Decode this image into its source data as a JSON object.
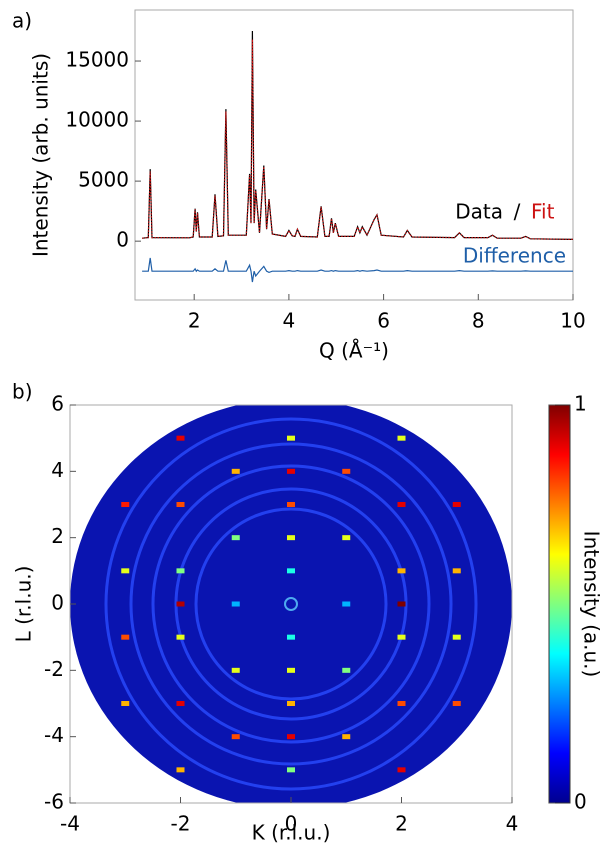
{
  "chart_data": [
    {
      "type": "line",
      "panel_label": "a)",
      "xlabel": "Q (Å⁻¹)",
      "ylabel": "Intensity (arb. units)",
      "xlim": [
        0.75,
        10
      ],
      "ylim": [
        -4900,
        19250
      ],
      "xticks": [
        2,
        4,
        6,
        8,
        10
      ],
      "yticks": [
        0,
        5000,
        10000,
        15000
      ],
      "legend_separator": "/",
      "x": [
        0.9,
        1.03,
        1.07,
        1.11,
        1.9,
        1.98,
        2.02,
        2.045,
        2.07,
        2.11,
        2.38,
        2.44,
        2.5,
        2.62,
        2.67,
        2.72,
        3.1,
        3.17,
        3.2,
        3.23,
        3.265,
        3.3,
        3.38,
        3.47,
        3.53,
        3.58,
        3.65,
        3.93,
        4.0,
        4.07,
        4.13,
        4.18,
        4.25,
        4.6,
        4.68,
        4.76,
        4.85,
        4.9,
        4.94,
        4.98,
        5.05,
        5.38,
        5.45,
        5.5,
        5.55,
        5.65,
        5.8,
        5.86,
        5.95,
        6.42,
        6.5,
        6.6,
        7.5,
        7.6,
        7.7,
        8.2,
        8.3,
        8.4,
        8.9,
        9.0,
        9.1,
        10
      ],
      "series": [
        {
          "name": "Data",
          "color": "#000000",
          "values": [
            250,
            300,
            6000,
            300,
            280,
            350,
            2700,
            800,
            2400,
            350,
            350,
            3900,
            400,
            450,
            11000,
            500,
            500,
            5600,
            1500,
            17500,
            1500,
            4300,
            700,
            6300,
            1000,
            3500,
            600,
            400,
            900,
            450,
            400,
            1000,
            400,
            350,
            2900,
            400,
            400,
            1900,
            700,
            1500,
            400,
            400,
            1200,
            700,
            1200,
            500,
            1800,
            2200,
            500,
            350,
            900,
            350,
            300,
            700,
            300,
            300,
            500,
            250,
            250,
            400,
            200,
            150
          ]
        },
        {
          "name": "Fit",
          "color": "#cc1111",
          "values": [
            250,
            300,
            5800,
            300,
            280,
            350,
            2650,
            800,
            2350,
            350,
            350,
            3800,
            400,
            450,
            10800,
            500,
            500,
            5500,
            1500,
            16800,
            1500,
            4200,
            700,
            6200,
            1000,
            3450,
            600,
            400,
            880,
            450,
            400,
            980,
            400,
            350,
            2850,
            400,
            400,
            1870,
            700,
            1480,
            400,
            400,
            1180,
            700,
            1180,
            500,
            1780,
            2170,
            500,
            350,
            880,
            350,
            300,
            690,
            300,
            300,
            490,
            250,
            250,
            390,
            200,
            150
          ]
        },
        {
          "name": "Difference",
          "color": "#1f5fa8",
          "values": [
            -2500,
            -2500,
            -1400,
            -2500,
            -2500,
            -2500,
            -2300,
            -2500,
            -2400,
            -2500,
            -2500,
            -2300,
            -2500,
            -2500,
            -1600,
            -2500,
            -2500,
            -2000,
            -2500,
            -3400,
            -2500,
            -2900,
            -2500,
            -2100,
            -2500,
            -2600,
            -2500,
            -2500,
            -2450,
            -2500,
            -2500,
            -2450,
            -2500,
            -2500,
            -2400,
            -2500,
            -2500,
            -2450,
            -2500,
            -2450,
            -2500,
            -2500,
            -2450,
            -2500,
            -2450,
            -2500,
            -2450,
            -2400,
            -2500,
            -2500,
            -2450,
            -2500,
            -2500,
            -2450,
            -2500,
            -2500,
            -2480,
            -2500,
            -2500,
            -2480,
            -2500,
            -2500
          ]
        }
      ]
    },
    {
      "type": "scatter",
      "panel_label": "b)",
      "xlabel": "K (r.l.u.)",
      "ylabel": "L (r.l.u.)",
      "xlim": [
        -4,
        4
      ],
      "ylim": [
        -6,
        6
      ],
      "xticks": [
        -4,
        -2,
        0,
        2,
        4
      ],
      "yticks": [
        -6,
        -4,
        -2,
        0,
        2,
        4,
        6
      ],
      "colorbar_label": "Intensity (a.u.)",
      "clim": [
        0,
        1
      ],
      "cticks": [
        0,
        1
      ],
      "K": [
        0,
        0,
        0,
        0,
        0,
        0,
        0,
        0,
        0,
        0,
        1,
        1,
        1,
        1,
        1,
        -1,
        -1,
        -1,
        -1,
        -1,
        2,
        2,
        2,
        2,
        2,
        2,
        2,
        -2,
        -2,
        -2,
        -2,
        -2,
        -2,
        -2,
        3,
        3,
        3,
        3,
        -3,
        -3,
        -3,
        -3
      ],
      "L": [
        -5,
        -4,
        -3,
        -2,
        -1,
        1,
        2,
        3,
        4,
        5,
        -4,
        -2,
        0,
        2,
        4,
        -4,
        -2,
        0,
        2,
        4,
        -5,
        -3,
        -1,
        0,
        1,
        3,
        5,
        -5,
        -3,
        -1,
        0,
        1,
        3,
        5,
        -3,
        -1,
        1,
        3,
        -3,
        -1,
        1,
        3
      ],
      "intensity": [
        0.5,
        0.9,
        0.7,
        0.6,
        0.4,
        0.4,
        0.6,
        0.8,
        0.9,
        0.6,
        0.7,
        0.5,
        0.3,
        0.6,
        0.8,
        0.8,
        0.6,
        0.3,
        0.5,
        0.7,
        0.9,
        0.8,
        0.6,
        1.0,
        0.7,
        0.9,
        0.6,
        0.7,
        0.9,
        0.6,
        0.95,
        0.5,
        0.8,
        0.9,
        0.8,
        0.6,
        0.7,
        0.9,
        0.7,
        0.8,
        0.6,
        0.85
      ]
    }
  ]
}
